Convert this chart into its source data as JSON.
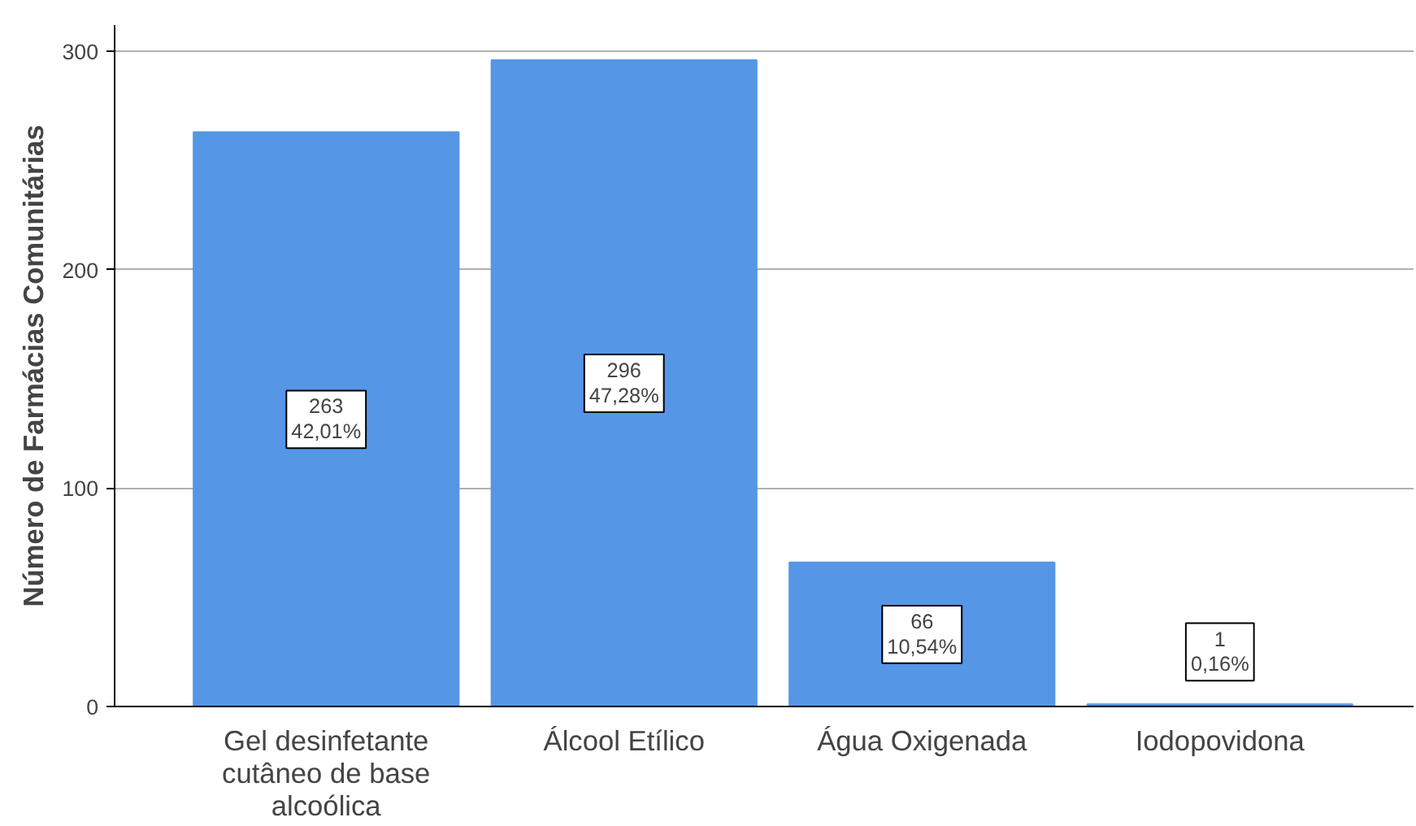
{
  "chart_data": {
    "type": "bar",
    "ylabel": "Número de Farmácias Comunitárias",
    "categories": [
      "Gel desinfetante cutâneo de base alcoólica",
      "Álcool Etílico",
      "Água Oxigenada",
      "Iodopovidona"
    ],
    "values": [
      263,
      296,
      66,
      1
    ],
    "value_labels": [
      "263\n42,01%",
      "296\n47,28%",
      "66\n10,54%",
      "1\n0,16%"
    ],
    "color": "#5596e6",
    "ylim": [
      0,
      312
    ],
    "yticks": [
      0,
      100,
      200,
      300
    ],
    "grid": "y"
  }
}
